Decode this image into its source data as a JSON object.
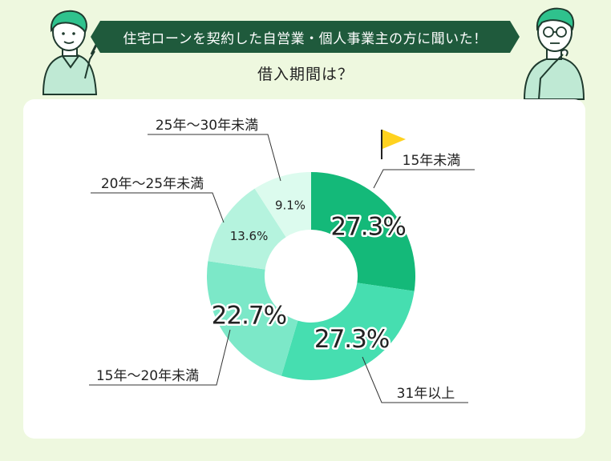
{
  "header": {
    "banner": "住宅ローンを契約した自営業・個人事業主の方に聞いた！",
    "question": "借入期間は？"
  },
  "colors": {
    "background": "#eef8df",
    "banner": "#1f5a3c",
    "card": "#ffffff"
  },
  "icons": [
    "person-pointing-illustration",
    "person-thinking-illustration",
    "flag-icon"
  ],
  "chart_data": {
    "type": "pie",
    "donut": true,
    "slices": [
      {
        "label": "15年未満",
        "value": 27.3,
        "value_label": "27.3%",
        "color": "#14b979",
        "highlight": true
      },
      {
        "label": "31年以上",
        "value": 27.3,
        "value_label": "27.3%",
        "color": "#46deb0"
      },
      {
        "label": "15年〜20年未満",
        "value": 22.7,
        "value_label": "22.7%",
        "color": "#7ce8c8"
      },
      {
        "label": "20年〜25年未満",
        "value": 13.6,
        "value_label": "13.6%",
        "color": "#b5f3de"
      },
      {
        "label": "25年〜30年未満",
        "value": 9.1,
        "value_label": "9.1%",
        "color": "#dcfbee"
      }
    ]
  }
}
